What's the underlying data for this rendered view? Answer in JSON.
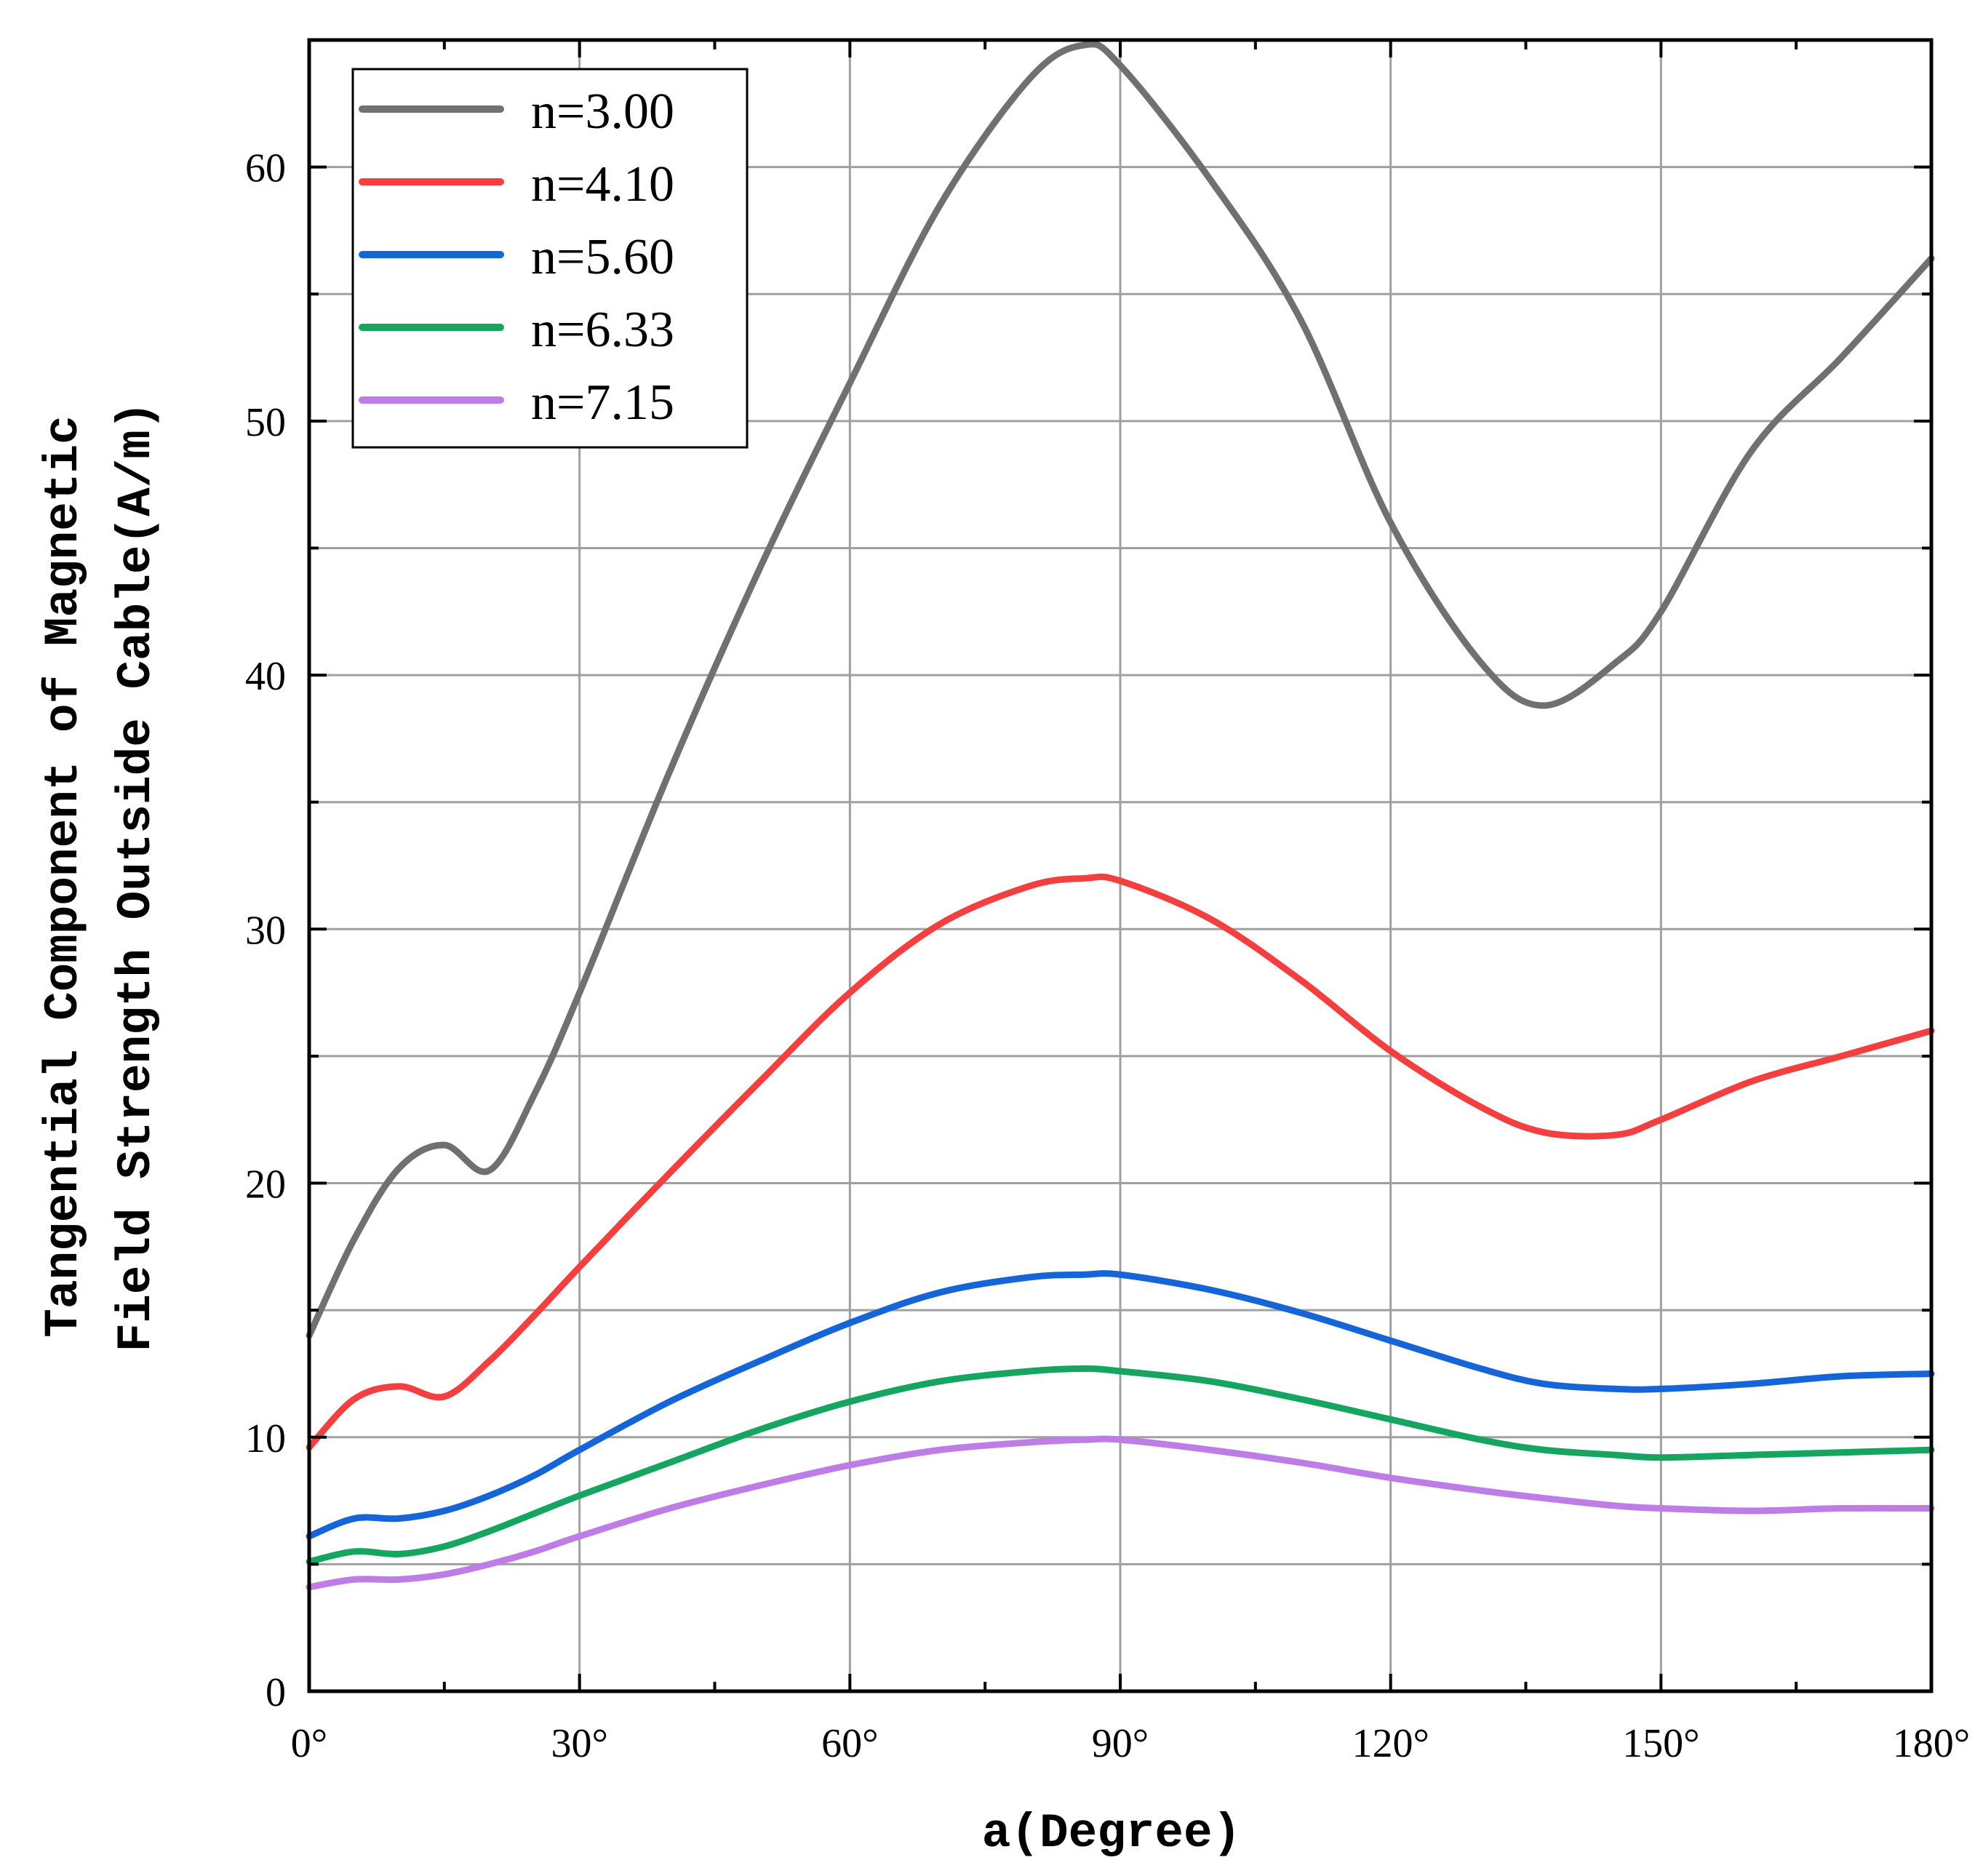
{
  "chart_data": {
    "type": "line",
    "title": "",
    "xlabel": "a(Degree)",
    "ylabel_line1": "Tangential Component of Magnetic",
    "ylabel_line2": "Field Strength Outside Cable(A/m)",
    "xlim": [
      0,
      180
    ],
    "ylim": [
      0,
      65
    ],
    "x_ticks": [
      0,
      30,
      60,
      90,
      120,
      150,
      180
    ],
    "x_tick_labels": [
      "0°",
      "30°",
      "60°",
      "90°",
      "120°",
      "150°",
      "180°"
    ],
    "y_ticks": [
      0,
      10,
      20,
      30,
      40,
      50,
      60
    ],
    "y_tick_labels": [
      "0",
      "10",
      "20",
      "30",
      "40",
      "50",
      "60"
    ],
    "grid": true,
    "legend_position": "top-left",
    "x": [
      0,
      5,
      10,
      15,
      20,
      25,
      30,
      40,
      50,
      60,
      70,
      80,
      86,
      90,
      100,
      110,
      120,
      130,
      137,
      145,
      150,
      160,
      170,
      180
    ],
    "series": [
      {
        "name": "n=3.00",
        "color": "#707070",
        "values": [
          14.0,
          17.8,
          20.6,
          21.5,
          20.5,
          23.5,
          27.5,
          36.2,
          44.2,
          51.5,
          58.5,
          63.5,
          64.8,
          64.0,
          59.5,
          54.0,
          46.0,
          40.5,
          38.8,
          40.5,
          42.5,
          48.8,
          52.5,
          56.4
        ]
      },
      {
        "name": "n=4.10",
        "color": "#F24040",
        "values": [
          9.6,
          11.5,
          12.0,
          11.6,
          13.0,
          14.8,
          16.7,
          20.4,
          24.0,
          27.5,
          30.2,
          31.7,
          32.0,
          31.9,
          30.4,
          28.0,
          25.2,
          23.0,
          22.0,
          21.9,
          22.5,
          24.0,
          25.0,
          26.0
        ]
      },
      {
        "name": "n=5.60",
        "color": "#1565D8",
        "values": [
          6.1,
          6.8,
          6.8,
          7.1,
          7.7,
          8.5,
          9.5,
          11.4,
          13.0,
          14.5,
          15.7,
          16.3,
          16.4,
          16.4,
          15.8,
          14.9,
          13.8,
          12.7,
          12.1,
          11.9,
          11.9,
          12.1,
          12.4,
          12.5
        ]
      },
      {
        "name": "n=6.33",
        "color": "#16A561",
        "values": [
          5.1,
          5.5,
          5.4,
          5.7,
          6.3,
          7.0,
          7.7,
          9.0,
          10.3,
          11.4,
          12.2,
          12.6,
          12.7,
          12.6,
          12.2,
          11.5,
          10.7,
          9.9,
          9.5,
          9.3,
          9.2,
          9.3,
          9.4,
          9.5
        ]
      },
      {
        "name": "n=7.15",
        "color": "#BE7DE6",
        "values": [
          4.1,
          4.4,
          4.4,
          4.6,
          5.0,
          5.5,
          6.1,
          7.2,
          8.1,
          8.9,
          9.5,
          9.8,
          9.9,
          9.9,
          9.5,
          9.0,
          8.4,
          7.9,
          7.6,
          7.3,
          7.2,
          7.1,
          7.2,
          7.2
        ]
      }
    ]
  }
}
